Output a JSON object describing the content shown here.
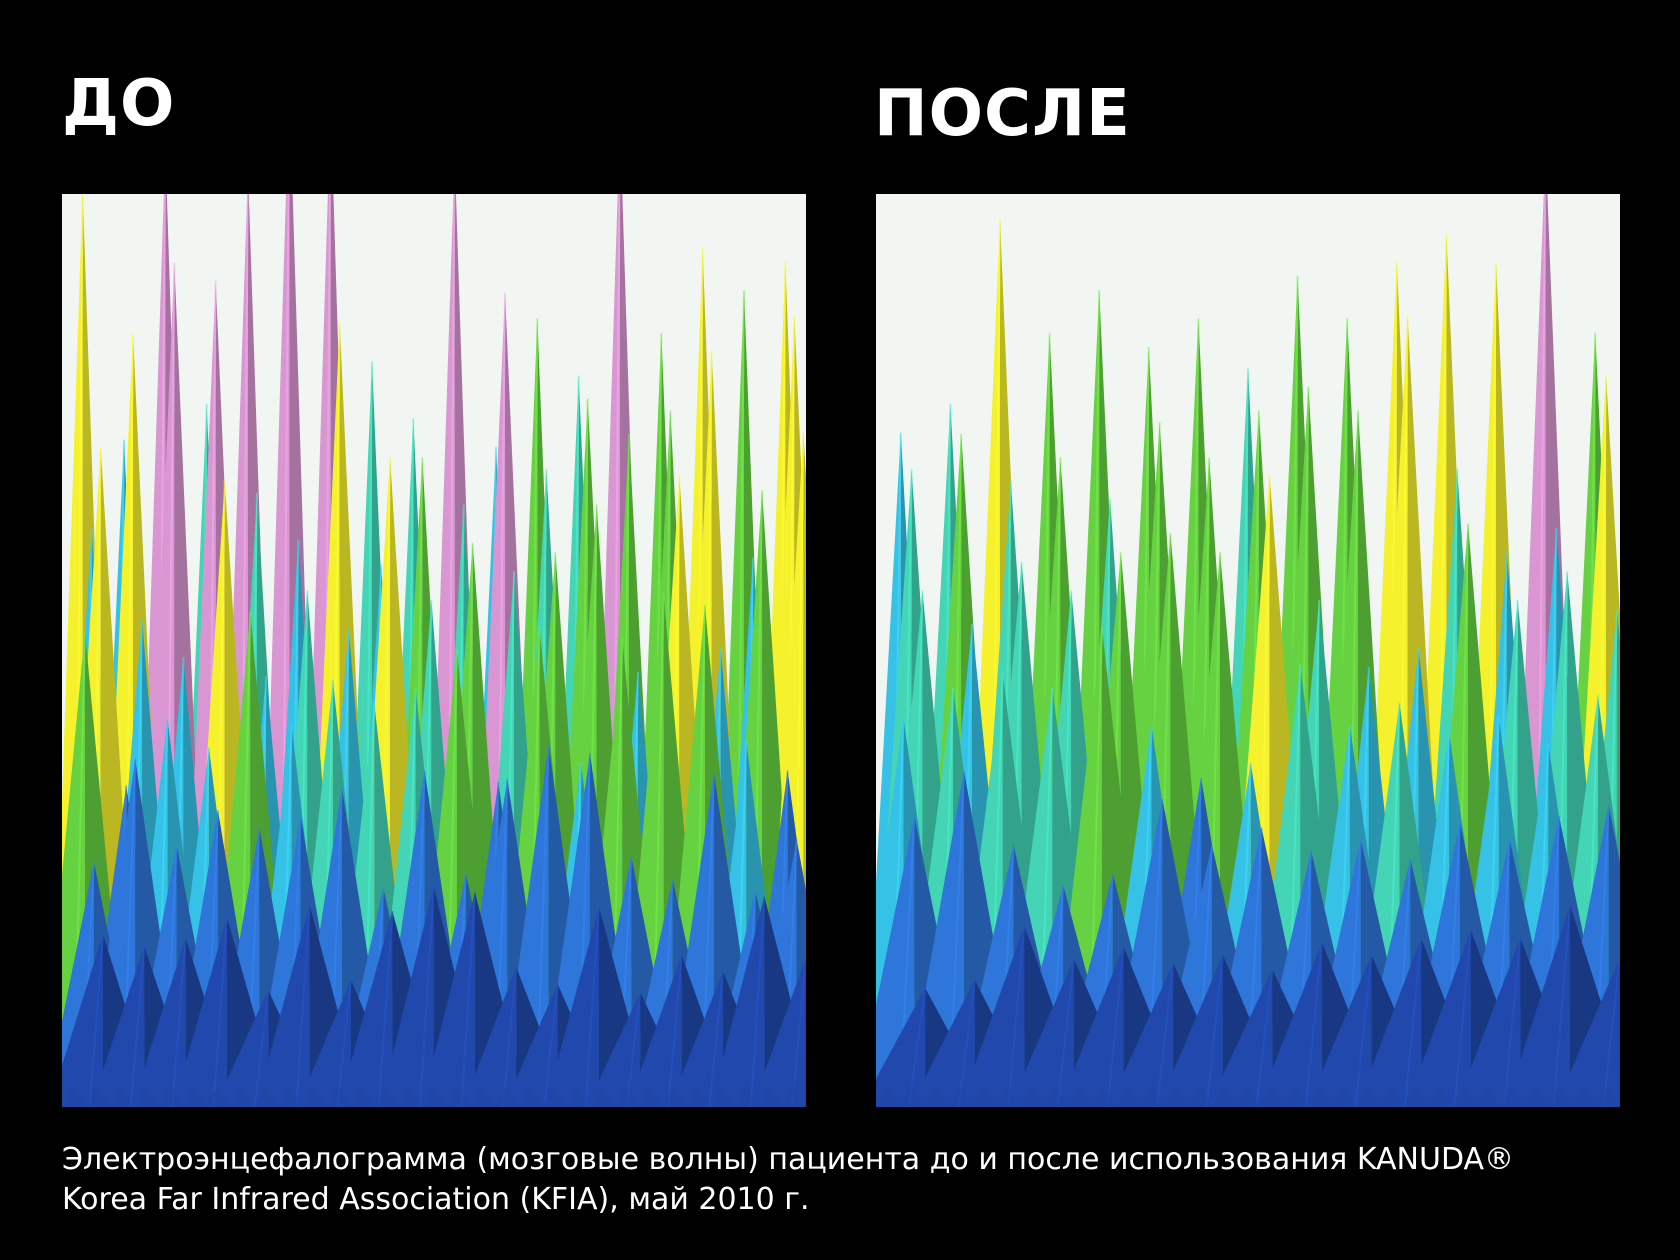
{
  "chart_data": [
    {
      "type": "area",
      "title": "ДО",
      "note": "EEG 3D spectral surface, high and irregular peaks",
      "peaks": [
        0.8,
        0.45,
        0.86,
        0.5,
        0.83,
        0.95,
        0.92,
        0.56,
        0.48,
        0.85,
        0.44,
        0.62,
        0.54,
        0.9,
        0.6,
        0.72,
        0.66,
        0.7
      ]
    },
    {
      "type": "area",
      "title": "ПОСЛЕ",
      "note": "EEG 3D spectral surface, lower and calmer peaks",
      "peaks": [
        0.46,
        0.5,
        0.76,
        0.6,
        0.66,
        0.58,
        0.62,
        0.55,
        0.68,
        0.62,
        0.7,
        0.74,
        0.7,
        0.86,
        0.6
      ]
    }
  ],
  "titles": {
    "before": "ДО",
    "after": "ПОСЛЕ"
  },
  "caption": {
    "line1": "Электроэнцефалограмма (мозговые волны) пациента до и после использования KANUDA®",
    "line2": "Korea Far Infrared Association (KFIA), май 2010 г."
  },
  "colors": {
    "background": "#000000",
    "panel": "#f1f6f2",
    "deep_blue": "#1f44a0",
    "mid_blue": "#2b6dc9",
    "cyan": "#32b4d6",
    "teal": "#3ec5a8",
    "green": "#5fc23c",
    "yellow": "#e3df2a",
    "pink": "#c98bc2"
  }
}
